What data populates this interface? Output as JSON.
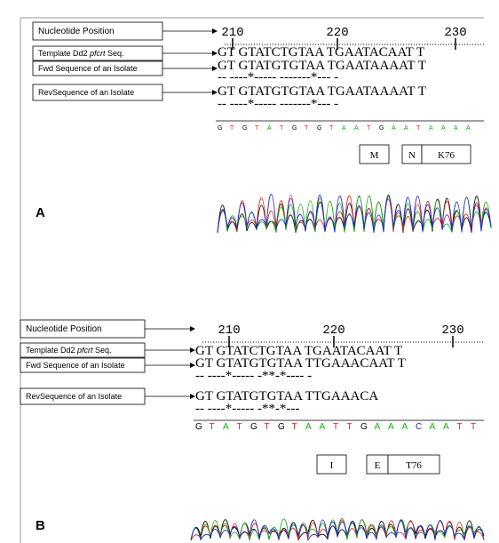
{
  "panels": [
    {
      "label": "A",
      "rows": {
        "position": "Nucleotide Position",
        "template": [
          "Template Dd2 ",
          "pfcrt",
          " Seq."
        ],
        "fwd": "Fwd Sequence of an Isolate",
        "rev": "RevSequence of an Isolate"
      },
      "ticks": [
        210,
        220,
        230
      ],
      "sequences": [
        "GT GTATCTGTAA TGAATACAAT T",
        "GT GTATGTGTAA TGAATAAAAT T",
        "-- ----*----- -------*--- -",
        "GT GTATGTGTAA TGAATAAAAT T",
        "-- ----*----- -------*--- -"
      ],
      "bases": [
        "G",
        "T",
        "G",
        "T",
        "A",
        "T",
        "G",
        "T",
        "G",
        "T",
        "A",
        "A",
        "T",
        "G",
        "A",
        "A",
        "T",
        "A",
        "A",
        "A",
        "A"
      ],
      "boxes": [
        "M",
        "N",
        "K76"
      ]
    },
    {
      "label": "B",
      "rows": {
        "position": "Nucleotide Position",
        "template": [
          "Template Dd2 ",
          "pfcrt",
          " Seq."
        ],
        "fwd": "Fwd Sequence of an Isolate",
        "rev": "RevSequence of an Isolate"
      },
      "ticks": [
        210,
        220,
        230
      ],
      "sequences": [
        "GT GTATCTGTAA TGAATACAAT T",
        "GT GTATGTGTAA TTGAAACAAT T",
        "-- ----*----- -**-*---- -",
        "GT GTATGTGTAA TTGAAACA",
        "-- ----*----- -**-*---"
      ],
      "bases": [
        "G",
        "T",
        "A",
        "T",
        "G",
        "T",
        "G",
        "T",
        "A",
        "A",
        "T",
        "T",
        "G",
        "A",
        "A",
        "A",
        "C",
        "A",
        "A",
        "T",
        "T"
      ],
      "boxes": [
        "I",
        "E",
        "T76"
      ]
    }
  ]
}
